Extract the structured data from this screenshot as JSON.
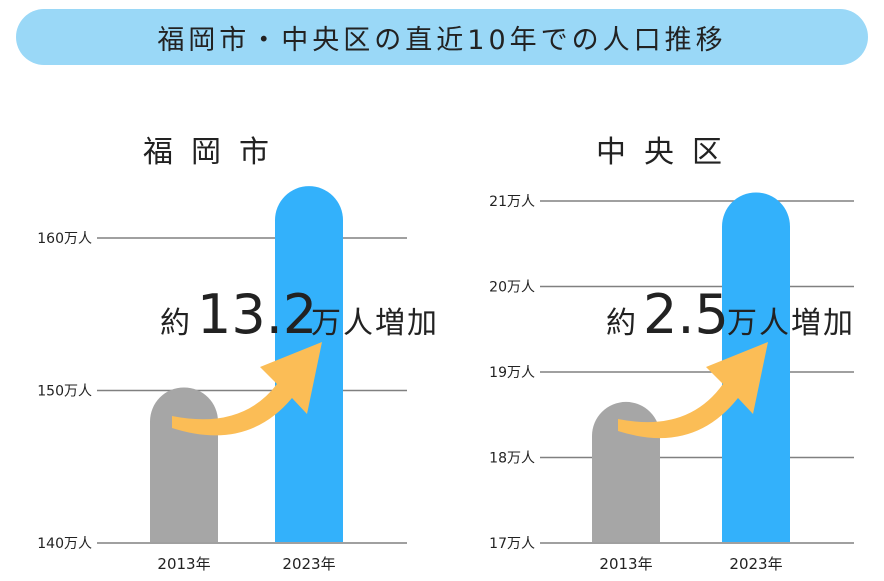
{
  "header": {
    "title": "福岡市・中央区の直近10年での人口推移"
  },
  "colors": {
    "banner": "#9ad8f7",
    "bar_2013": "#a6a6a6",
    "bar_2023": "#33b1fb",
    "arrow": "#fbbd56",
    "grid": "#808080"
  },
  "chart_data": [
    {
      "type": "bar",
      "title": "福岡市",
      "categories": [
        "2013年",
        "2023年"
      ],
      "values": [
        150.2,
        163.4
      ],
      "unit": "万人",
      "yticks": [
        140,
        150,
        160
      ],
      "ytick_labels": [
        "140万人",
        "150万人",
        "160万人"
      ],
      "ylim": [
        140,
        164
      ],
      "annotation": {
        "prefix": "約",
        "value": "13.2",
        "suffix": "万人増加"
      }
    },
    {
      "type": "bar",
      "title": "中央区",
      "categories": [
        "2013年",
        "2023年"
      ],
      "values": [
        18.65,
        21.1
      ],
      "unit": "万人",
      "yticks": [
        17,
        18,
        19,
        20,
        21
      ],
      "ytick_labels": [
        "17万人",
        "18万人",
        "19万人",
        "20万人",
        "21万人"
      ],
      "ylim": [
        17,
        21.1
      ],
      "annotation": {
        "prefix": "約",
        "value": "2.5",
        "suffix": "万人増加"
      }
    }
  ]
}
